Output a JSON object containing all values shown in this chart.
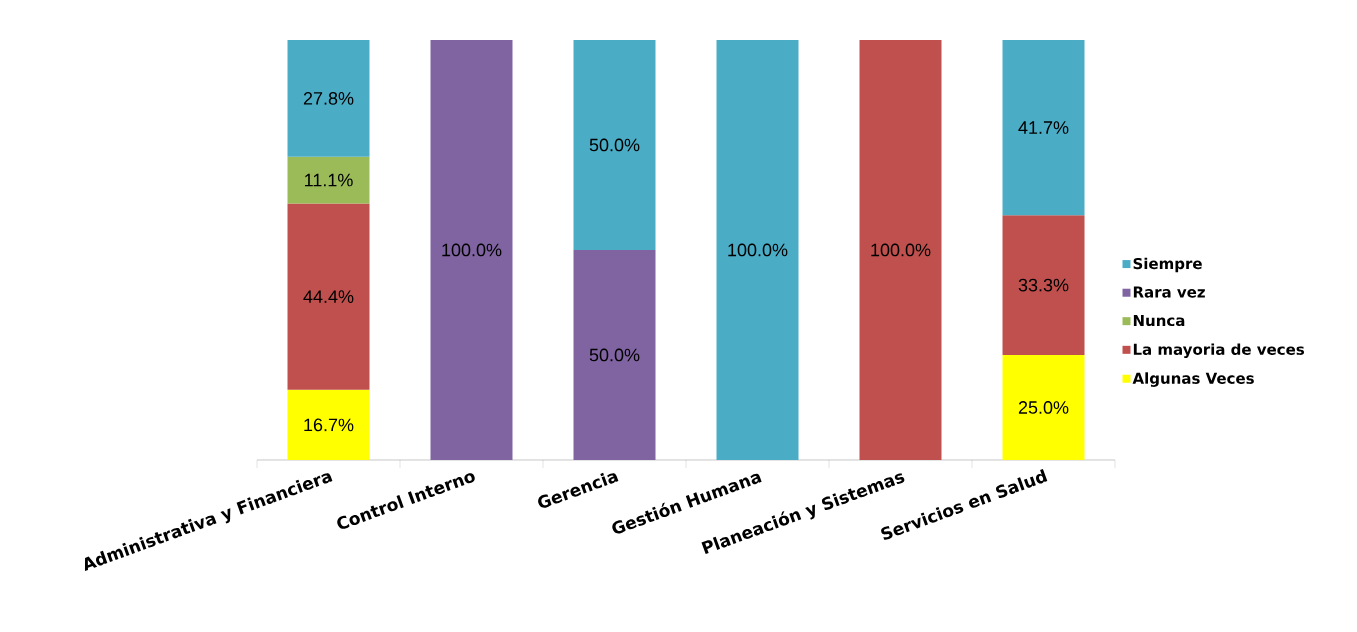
{
  "chart_data": {
    "type": "bar",
    "stacked": true,
    "categories": [
      "Administrativa y Financiera",
      "Control Interno",
      "Gerencia",
      "Gestión Humana",
      "Planeación y Sistemas",
      "Servicios en Salud"
    ],
    "series": [
      {
        "name": "Algunas Veces",
        "color": "#ffff00",
        "values": [
          16.7,
          null,
          null,
          null,
          null,
          25.0
        ],
        "value_labels": [
          "16.7%",
          null,
          null,
          null,
          null,
          "25.0%"
        ]
      },
      {
        "name": "La mayoria de veces",
        "color": "#c0504d",
        "values": [
          44.4,
          null,
          null,
          null,
          100.0,
          33.3
        ],
        "value_labels": [
          "44.4%",
          null,
          null,
          null,
          "100.0%",
          "33.3%"
        ]
      },
      {
        "name": "Nunca",
        "color": "#9bbb59",
        "values": [
          11.1,
          null,
          null,
          null,
          null,
          null
        ],
        "value_labels": [
          "11.1%",
          null,
          null,
          null,
          null,
          null
        ]
      },
      {
        "name": "Rara vez",
        "color": "#8064a2",
        "values": [
          null,
          100.0,
          50.0,
          null,
          null,
          null
        ],
        "value_labels": [
          null,
          "100.0%",
          "50.0%",
          null,
          null,
          null
        ]
      },
      {
        "name": "Siempre",
        "color": "#4bacc6",
        "values": [
          27.8,
          null,
          50.0,
          100.0,
          null,
          41.7
        ],
        "value_labels": [
          "27.8%",
          null,
          "50.0%",
          "100.0%",
          null,
          "41.7%"
        ]
      }
    ],
    "ylim": [
      0,
      100
    ],
    "tick_labels": "x",
    "legend": "right"
  }
}
